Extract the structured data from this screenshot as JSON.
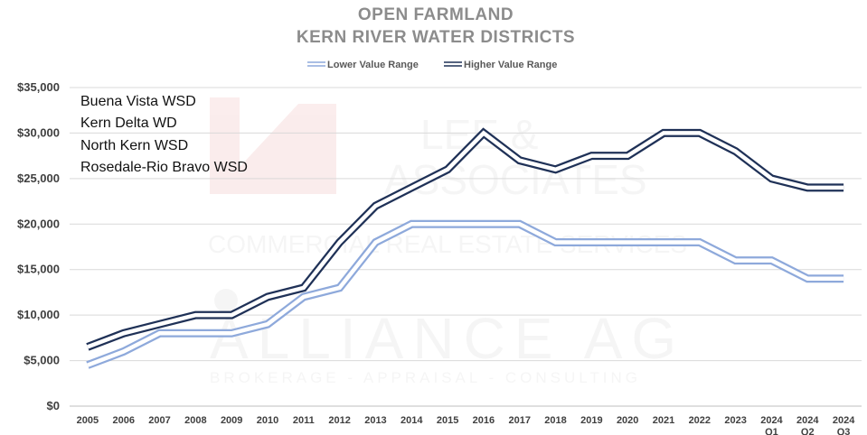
{
  "chart_data": {
    "type": "line",
    "title": [
      "OPEN FARMLAND",
      "KERN RIVER WATER DISTRICTS"
    ],
    "categories": [
      "2005",
      "2006",
      "2007",
      "2008",
      "2009",
      "2010",
      "2011",
      "2012",
      "2013",
      "2014",
      "2015",
      "2016",
      "2017",
      "2018",
      "2019",
      "2020",
      "2021",
      "2022",
      "2023",
      "2024 Q1",
      "2024 Q2",
      "2024 Q3"
    ],
    "series": [
      {
        "name": "Lower Value Range",
        "color": "#8ea9db",
        "values": [
          4500,
          6000,
          8000,
          8000,
          8000,
          9000,
          12000,
          13000,
          18000,
          20000,
          20000,
          20000,
          20000,
          18000,
          18000,
          18000,
          18000,
          18000,
          16000,
          16000,
          14000,
          14000
        ]
      },
      {
        "name": "Higher Value Range",
        "color": "#1f3157",
        "values": [
          6500,
          8000,
          9000,
          10000,
          10000,
          12000,
          13000,
          18000,
          22000,
          24000,
          26000,
          30000,
          27000,
          26000,
          27500,
          27500,
          30000,
          30000,
          28000,
          25000,
          24000,
          24000
        ]
      }
    ],
    "ylim": [
      0,
      35000
    ],
    "yticks": [
      "$0",
      "$5,000",
      "$10,000",
      "$15,000",
      "$20,000",
      "$25,000",
      "$30,000",
      "$35,000"
    ],
    "grid": true,
    "legend_position": "top",
    "annotation_lines": [
      "Buena Vista WSD",
      "Kern Delta WD",
      "North Kern WSD",
      "Rosedale-Rio Bravo WSD"
    ]
  },
  "watermark": {
    "lines": [
      "LEE &",
      "ASSOCIATES",
      "COMMERCIAL REAL ESTATE SERVICES",
      "ALLIANCE AG",
      "BROKERAGE - APPRAISAL - CONSULTING"
    ],
    "colors": {
      "red": "#c00000",
      "gray": "#7f7f7f"
    }
  }
}
